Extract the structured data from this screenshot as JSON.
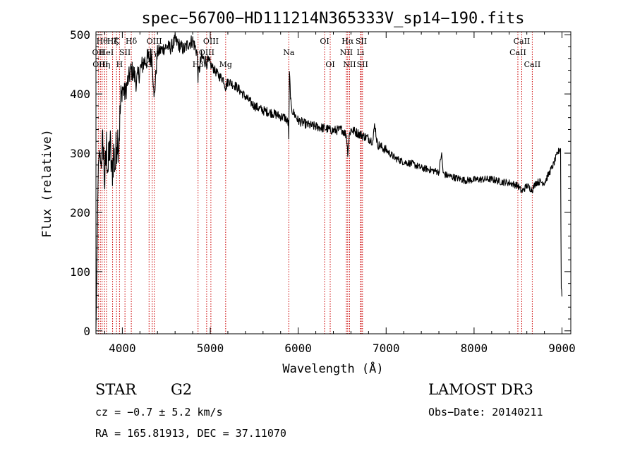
{
  "chart_data": {
    "type": "line",
    "title": "spec−56700−HD111214N365333V_sp14−190.fits",
    "xlabel": "Wavelength (Å)",
    "ylabel": "Flux (relative)",
    "xlim": [
      3700,
      9100
    ],
    "ylim": [
      -5,
      505
    ],
    "xticks": [
      4000,
      5000,
      6000,
      7000,
      8000,
      9000
    ],
    "yticks": [
      0,
      100,
      200,
      300,
      400,
      500
    ],
    "grid": false,
    "spectrum_anchors": {
      "x": [
        3700,
        3710,
        3725,
        3740,
        3760,
        3780,
        3800,
        3820,
        3840,
        3860,
        3880,
        3900,
        3920,
        3940,
        3960,
        3980,
        4000,
        4030,
        4060,
        4100,
        4130,
        4160,
        4200,
        4250,
        4300,
        4340,
        4360,
        4400,
        4450,
        4500,
        4550,
        4600,
        4650,
        4700,
        4750,
        4800,
        4850,
        4860,
        4900,
        4950,
        5000,
        5050,
        5100,
        5150,
        5175,
        5200,
        5300,
        5400,
        5500,
        5600,
        5700,
        5800,
        5850,
        5889,
        5893,
        5900,
        5920,
        6000,
        6100,
        6200,
        6300,
        6400,
        6500,
        6550,
        6563,
        6580,
        6600,
        6700,
        6800,
        6850,
        6870,
        6900,
        7000,
        7100,
        7200,
        7300,
        7400,
        7500,
        7600,
        7630,
        7650,
        7700,
        7800,
        7900,
        8000,
        8100,
        8200,
        8300,
        8400,
        8500,
        8542,
        8600,
        8662,
        8700,
        8750,
        8800,
        8850,
        8900,
        8950,
        8985,
        8990,
        9000
      ],
      "y": [
        0,
        100,
        270,
        300,
        280,
        320,
        250,
        310,
        270,
        320,
        260,
        300,
        280,
        330,
        320,
        380,
        410,
        400,
        420,
        440,
        435,
        420,
        440,
        455,
        460,
        465,
        390,
        470,
        475,
        480,
        478,
        490,
        482,
        475,
        485,
        490,
        470,
        430,
        462,
        455,
        450,
        440,
        430,
        425,
        410,
        422,
        412,
        395,
        380,
        372,
        368,
        362,
        360,
        350,
        320,
        435,
        375,
        355,
        348,
        345,
        342,
        338,
        340,
        330,
        300,
        330,
        340,
        332,
        325,
        320,
        350,
        315,
        305,
        292,
        285,
        282,
        275,
        272,
        268,
        300,
        265,
        262,
        258,
        254,
        255,
        256,
        256,
        252,
        250,
        245,
        235,
        245,
        238,
        250,
        252,
        250,
        265,
        280,
        300,
        310,
        80,
        60
      ]
    },
    "spectral_lines": [
      {
        "wavelength": 3727,
        "label": "OII",
        "row": 2
      },
      {
        "wavelength": 3750,
        "label": "OIII",
        "row": 3
      },
      {
        "wavelength": 3770,
        "label": "Hθ",
        "row": 1
      },
      {
        "wavelength": 3798,
        "label": "Hη",
        "row": 3
      },
      {
        "wavelength": 3820,
        "label": "HeI",
        "row": 2
      },
      {
        "wavelength": 3889,
        "label": "Hζ",
        "row": 1
      },
      {
        "wavelength": 3934,
        "label": "K",
        "row": 1
      },
      {
        "wavelength": 3968,
        "label": "H",
        "row": 3
      },
      {
        "wavelength": 4030,
        "label": "SII",
        "row": 2
      },
      {
        "wavelength": 4102,
        "label": "Hδ",
        "row": 1
      },
      {
        "wavelength": 4304,
        "label": "G",
        "row": 3
      },
      {
        "wavelength": 4340,
        "label": "Hγ",
        "row": 2
      },
      {
        "wavelength": 4363,
        "label": "OIII",
        "row": 1
      },
      {
        "wavelength": 4861,
        "label": "Hβ",
        "row": 3
      },
      {
        "wavelength": 4959,
        "label": "OIII",
        "row": 2
      },
      {
        "wavelength": 5007,
        "label": "OIII",
        "row": 1
      },
      {
        "wavelength": 5175,
        "label": "Mg",
        "row": 3
      },
      {
        "wavelength": 5893,
        "label": "Na",
        "row": 2
      },
      {
        "wavelength": 6300,
        "label": "OI",
        "row": 1
      },
      {
        "wavelength": 6364,
        "label": "OI",
        "row": 3
      },
      {
        "wavelength": 6548,
        "label": "NII",
        "row": 2
      },
      {
        "wavelength": 6563,
        "label": "Hα",
        "row": 1
      },
      {
        "wavelength": 6584,
        "label": "NII",
        "row": 3
      },
      {
        "wavelength": 6708,
        "label": "Li",
        "row": 2
      },
      {
        "wavelength": 6717,
        "label": "SII",
        "row": 1
      },
      {
        "wavelength": 6731,
        "label": "SII",
        "row": 3
      },
      {
        "wavelength": 8498,
        "label": "CaII",
        "row": 2
      },
      {
        "wavelength": 8542,
        "label": "CaII",
        "row": 1
      },
      {
        "wavelength": 8662,
        "label": "CaII",
        "row": 3
      }
    ]
  },
  "info": {
    "object_class": "STAR",
    "subclass": "G2",
    "survey": "LAMOST DR3",
    "redshift": "cz = −0.7 ± 5.2 km/s",
    "obs_date": "Obs−Date: 20140211",
    "coords": "RA = 165.81913, DEC =  37.11070"
  },
  "colors": {
    "spectrum": "#000000",
    "line_markers": "#cc0000",
    "axes": "#000000",
    "background": "#ffffff"
  }
}
